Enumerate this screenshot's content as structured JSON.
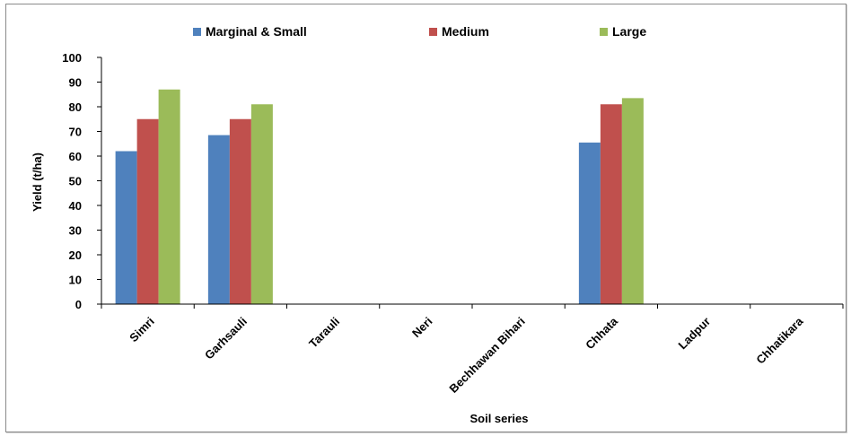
{
  "chart_data": {
    "type": "bar",
    "title": "",
    "xlabel": "Soil series",
    "ylabel": "Yield (t/ha)",
    "ylim": [
      0,
      100
    ],
    "yticks": [
      0,
      10,
      20,
      30,
      40,
      50,
      60,
      70,
      80,
      90,
      100
    ],
    "categories": [
      "Simri",
      "Garhsauli",
      "Tarauli",
      "Neri",
      "Bechhawan Bihari",
      "Chhata",
      "Ladpur",
      "Chhatikara"
    ],
    "series": [
      {
        "name": "Marginal & Small",
        "color": "#4F81BD",
        "values": [
          62,
          68.5,
          null,
          null,
          null,
          65.5,
          null,
          null
        ]
      },
      {
        "name": "Medium",
        "color": "#C0504D",
        "values": [
          75,
          75,
          null,
          null,
          null,
          81,
          null,
          null
        ]
      },
      {
        "name": "Large",
        "color": "#9BBB59",
        "values": [
          87,
          81,
          null,
          null,
          null,
          83.5,
          null,
          null
        ]
      }
    ],
    "legend_position": "top",
    "grid": false
  }
}
